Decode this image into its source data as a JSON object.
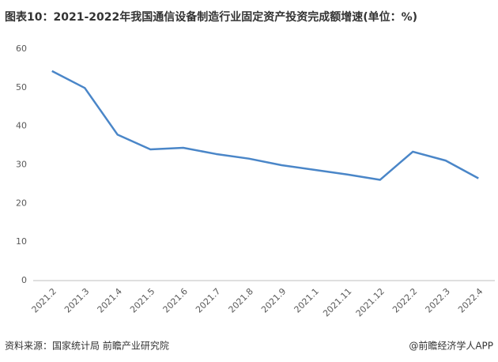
{
  "chart_data": {
    "type": "line",
    "title": "图表10：2021-2022年我国通信设备制造行业固定资产投资完成额增速(单位：%)",
    "source": "资料来源：国家统计局 前瞻产业研究院",
    "credit": "@前瞻经济学人APP",
    "categories": [
      "2021.2",
      "2021.3",
      "2021.4",
      "2021.5",
      "2021.6",
      "2021.7",
      "2021.8",
      "2021.9",
      "2021.1",
      "2021.11",
      "2021.12",
      "2022.2",
      "2022.3",
      "2022.4"
    ],
    "values": [
      54.3,
      49.9,
      37.8,
      34.0,
      34.4,
      32.8,
      31.6,
      29.9,
      28.7,
      27.5,
      26.1,
      33.4,
      31.1,
      26.5
    ],
    "color": "#4a86c8",
    "ylim": [
      0,
      60
    ],
    "yticks": [
      0,
      10,
      20,
      30,
      40,
      50,
      60
    ],
    "grid": false
  }
}
